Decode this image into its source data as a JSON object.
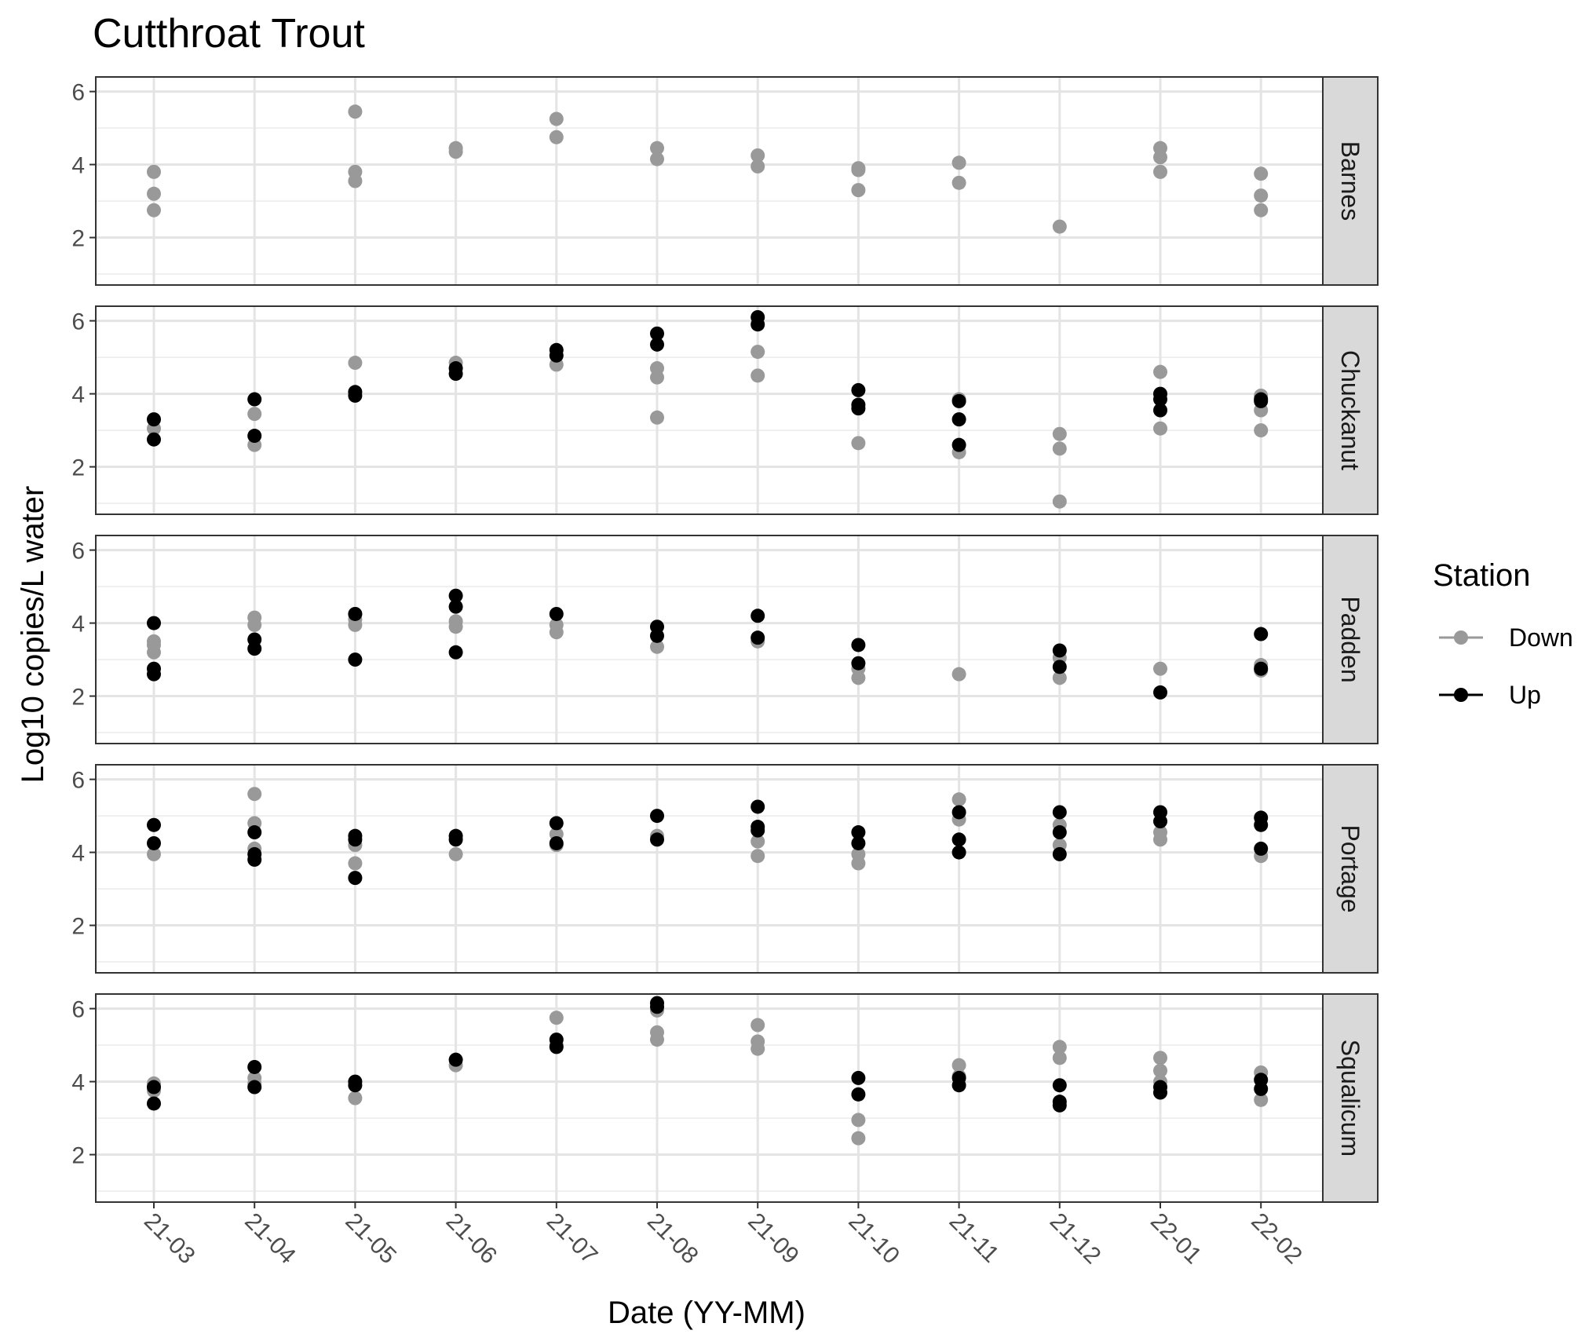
{
  "chart_data": {
    "type": "scatter",
    "title": "Cutthroat Trout",
    "xlabel": "Date (YY-MM)",
    "ylabel": "Log10 copies/L water",
    "categories": [
      "21-03",
      "21-04",
      "21-05",
      "21-06",
      "21-07",
      "21-08",
      "21-09",
      "21-10",
      "21-11",
      "21-12",
      "22-01",
      "22-02"
    ],
    "ylim": [
      0.7,
      6.4
    ],
    "y_ticks": [
      2,
      4,
      6
    ],
    "grid": true,
    "legend": {
      "title": "Station",
      "position": "right",
      "entries": [
        {
          "name": "Down",
          "color": "#999999"
        },
        {
          "name": "Up",
          "color": "#000000"
        }
      ]
    },
    "facets": [
      {
        "name": "Barnes",
        "series": [
          {
            "name": "Down",
            "points": [
              [
                "21-03",
                3.8
              ],
              [
                "21-03",
                3.2
              ],
              [
                "21-03",
                2.75
              ],
              [
                "21-05",
                5.45
              ],
              [
                "21-05",
                3.8
              ],
              [
                "21-05",
                3.55
              ],
              [
                "21-06",
                4.45
              ],
              [
                "21-06",
                4.35
              ],
              [
                "21-07",
                5.25
              ],
              [
                "21-07",
                4.75
              ],
              [
                "21-08",
                4.45
              ],
              [
                "21-08",
                4.15
              ],
              [
                "21-09",
                4.25
              ],
              [
                "21-09",
                3.95
              ],
              [
                "21-10",
                3.9
              ],
              [
                "21-10",
                3.85
              ],
              [
                "21-10",
                3.3
              ],
              [
                "21-11",
                4.05
              ],
              [
                "21-11",
                3.5
              ],
              [
                "21-12",
                2.3
              ],
              [
                "22-01",
                4.45
              ],
              [
                "22-01",
                4.2
              ],
              [
                "22-01",
                3.8
              ],
              [
                "22-02",
                3.75
              ],
              [
                "22-02",
                3.15
              ],
              [
                "22-02",
                2.75
              ]
            ]
          },
          {
            "name": "Up",
            "points": []
          }
        ]
      },
      {
        "name": "Chuckanut",
        "series": [
          {
            "name": "Down",
            "points": [
              [
                "21-03",
                3.05
              ],
              [
                "21-04",
                3.45
              ],
              [
                "21-04",
                2.6
              ],
              [
                "21-05",
                4.85
              ],
              [
                "21-06",
                4.85
              ],
              [
                "21-07",
                4.8
              ],
              [
                "21-08",
                4.7
              ],
              [
                "21-08",
                4.45
              ],
              [
                "21-08",
                3.35
              ],
              [
                "21-09",
                5.15
              ],
              [
                "21-09",
                4.5
              ],
              [
                "21-10",
                2.65
              ],
              [
                "21-11",
                3.85
              ],
              [
                "21-11",
                2.4
              ],
              [
                "21-12",
                2.9
              ],
              [
                "21-12",
                2.5
              ],
              [
                "21-12",
                1.05
              ],
              [
                "22-01",
                4.6
              ],
              [
                "22-01",
                3.05
              ],
              [
                "22-02",
                3.95
              ],
              [
                "22-02",
                3.55
              ],
              [
                "22-02",
                3.0
              ]
            ]
          },
          {
            "name": "Up",
            "points": [
              [
                "21-03",
                3.3
              ],
              [
                "21-03",
                2.75
              ],
              [
                "21-04",
                3.85
              ],
              [
                "21-04",
                2.85
              ],
              [
                "21-05",
                4.05
              ],
              [
                "21-05",
                3.95
              ],
              [
                "21-06",
                4.7
              ],
              [
                "21-06",
                4.55
              ],
              [
                "21-07",
                5.2
              ],
              [
                "21-07",
                5.05
              ],
              [
                "21-08",
                5.65
              ],
              [
                "21-08",
                5.35
              ],
              [
                "21-09",
                6.1
              ],
              [
                "21-09",
                5.9
              ],
              [
                "21-10",
                4.1
              ],
              [
                "21-10",
                3.7
              ],
              [
                "21-10",
                3.6
              ],
              [
                "21-11",
                3.8
              ],
              [
                "21-11",
                3.3
              ],
              [
                "21-11",
                2.6
              ],
              [
                "22-01",
                4.0
              ],
              [
                "22-01",
                3.85
              ],
              [
                "22-01",
                3.55
              ],
              [
                "22-02",
                3.85
              ],
              [
                "22-02",
                3.8
              ]
            ]
          }
        ]
      },
      {
        "name": "Padden",
        "series": [
          {
            "name": "Down",
            "points": [
              [
                "21-03",
                3.5
              ],
              [
                "21-03",
                3.4
              ],
              [
                "21-03",
                3.2
              ],
              [
                "21-04",
                4.15
              ],
              [
                "21-04",
                3.95
              ],
              [
                "21-05",
                4.25
              ],
              [
                "21-05",
                4.1
              ],
              [
                "21-05",
                3.95
              ],
              [
                "21-06",
                4.05
              ],
              [
                "21-06",
                3.9
              ],
              [
                "21-07",
                3.95
              ],
              [
                "21-07",
                3.75
              ],
              [
                "21-08",
                3.35
              ],
              [
                "21-09",
                3.5
              ],
              [
                "21-10",
                2.75
              ],
              [
                "21-10",
                2.5
              ],
              [
                "21-11",
                2.6
              ],
              [
                "21-12",
                3.05
              ],
              [
                "21-12",
                2.5
              ],
              [
                "22-01",
                2.75
              ],
              [
                "22-02",
                2.85
              ],
              [
                "22-02",
                2.7
              ]
            ]
          },
          {
            "name": "Up",
            "points": [
              [
                "21-03",
                4.0
              ],
              [
                "21-03",
                2.75
              ],
              [
                "21-03",
                2.6
              ],
              [
                "21-04",
                3.55
              ],
              [
                "21-04",
                3.3
              ],
              [
                "21-05",
                4.25
              ],
              [
                "21-05",
                3.0
              ],
              [
                "21-06",
                4.75
              ],
              [
                "21-06",
                4.45
              ],
              [
                "21-06",
                3.2
              ],
              [
                "21-07",
                4.25
              ],
              [
                "21-08",
                3.9
              ],
              [
                "21-08",
                3.65
              ],
              [
                "21-09",
                4.2
              ],
              [
                "21-09",
                3.6
              ],
              [
                "21-10",
                3.4
              ],
              [
                "21-10",
                2.9
              ],
              [
                "21-12",
                3.25
              ],
              [
                "21-12",
                2.8
              ],
              [
                "22-01",
                2.1
              ],
              [
                "22-02",
                3.7
              ],
              [
                "22-02",
                2.75
              ]
            ]
          }
        ]
      },
      {
        "name": "Portage",
        "series": [
          {
            "name": "Down",
            "points": [
              [
                "21-03",
                3.95
              ],
              [
                "21-04",
                5.6
              ],
              [
                "21-04",
                4.8
              ],
              [
                "21-04",
                4.1
              ],
              [
                "21-05",
                4.2
              ],
              [
                "21-05",
                3.7
              ],
              [
                "21-06",
                3.95
              ],
              [
                "21-07",
                4.5
              ],
              [
                "21-07",
                4.2
              ],
              [
                "21-08",
                4.45
              ],
              [
                "21-09",
                4.3
              ],
              [
                "21-09",
                3.9
              ],
              [
                "21-10",
                3.95
              ],
              [
                "21-10",
                3.7
              ],
              [
                "21-11",
                5.45
              ],
              [
                "21-11",
                4.9
              ],
              [
                "21-12",
                4.75
              ],
              [
                "21-12",
                4.2
              ],
              [
                "22-01",
                4.55
              ],
              [
                "22-01",
                4.35
              ],
              [
                "22-02",
                3.9
              ]
            ]
          },
          {
            "name": "Up",
            "points": [
              [
                "21-03",
                4.75
              ],
              [
                "21-03",
                4.25
              ],
              [
                "21-04",
                4.55
              ],
              [
                "21-04",
                3.95
              ],
              [
                "21-04",
                3.8
              ],
              [
                "21-05",
                4.45
              ],
              [
                "21-05",
                4.35
              ],
              [
                "21-05",
                3.3
              ],
              [
                "21-06",
                4.45
              ],
              [
                "21-06",
                4.35
              ],
              [
                "21-07",
                4.8
              ],
              [
                "21-07",
                4.25
              ],
              [
                "21-08",
                5.0
              ],
              [
                "21-08",
                4.35
              ],
              [
                "21-09",
                5.25
              ],
              [
                "21-09",
                4.7
              ],
              [
                "21-09",
                4.6
              ],
              [
                "21-10",
                4.55
              ],
              [
                "21-10",
                4.25
              ],
              [
                "21-11",
                5.1
              ],
              [
                "21-11",
                4.35
              ],
              [
                "21-11",
                4.0
              ],
              [
                "21-12",
                5.1
              ],
              [
                "21-12",
                4.55
              ],
              [
                "21-12",
                3.95
              ],
              [
                "22-01",
                5.1
              ],
              [
                "22-01",
                4.85
              ],
              [
                "22-02",
                4.95
              ],
              [
                "22-02",
                4.75
              ],
              [
                "22-02",
                4.1
              ]
            ]
          }
        ]
      },
      {
        "name": "Squalicum",
        "series": [
          {
            "name": "Down",
            "points": [
              [
                "21-03",
                3.95
              ],
              [
                "21-03",
                3.75
              ],
              [
                "21-04",
                4.1
              ],
              [
                "21-04",
                3.95
              ],
              [
                "21-05",
                3.55
              ],
              [
                "21-06",
                4.45
              ],
              [
                "21-07",
                5.75
              ],
              [
                "21-07",
                5.0
              ],
              [
                "21-08",
                5.95
              ],
              [
                "21-08",
                5.35
              ],
              [
                "21-08",
                5.15
              ],
              [
                "21-09",
                5.55
              ],
              [
                "21-09",
                5.1
              ],
              [
                "21-09",
                4.9
              ],
              [
                "21-10",
                2.95
              ],
              [
                "21-10",
                2.45
              ],
              [
                "21-11",
                4.45
              ],
              [
                "21-11",
                4.15
              ],
              [
                "21-12",
                4.95
              ],
              [
                "21-12",
                4.65
              ],
              [
                "22-01",
                4.65
              ],
              [
                "22-01",
                4.3
              ],
              [
                "22-01",
                4.0
              ],
              [
                "22-02",
                4.25
              ],
              [
                "22-02",
                3.5
              ]
            ]
          },
          {
            "name": "Up",
            "points": [
              [
                "21-03",
                3.85
              ],
              [
                "21-03",
                3.4
              ],
              [
                "21-04",
                4.4
              ],
              [
                "21-04",
                3.85
              ],
              [
                "21-05",
                4.0
              ],
              [
                "21-05",
                3.9
              ],
              [
                "21-06",
                4.6
              ],
              [
                "21-07",
                5.15
              ],
              [
                "21-07",
                4.95
              ],
              [
                "21-08",
                6.15
              ],
              [
                "21-08",
                6.05
              ],
              [
                "21-10",
                4.1
              ],
              [
                "21-10",
                3.65
              ],
              [
                "21-11",
                4.1
              ],
              [
                "21-11",
                3.9
              ],
              [
                "21-12",
                3.9
              ],
              [
                "21-12",
                3.45
              ],
              [
                "21-12",
                3.35
              ],
              [
                "22-01",
                3.85
              ],
              [
                "22-01",
                3.7
              ],
              [
                "22-02",
                4.05
              ],
              [
                "22-02",
                3.8
              ]
            ]
          }
        ]
      }
    ]
  }
}
